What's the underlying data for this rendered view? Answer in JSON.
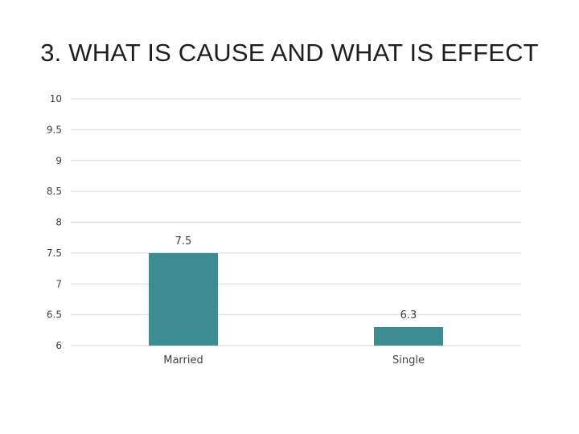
{
  "slide": {
    "title": "3. WHAT IS CAUSE AND WHAT IS EFFECT"
  },
  "colors": {
    "bar": "#3c8c91",
    "grid": "#d9d9d9",
    "text": "#404040"
  },
  "chart_data": {
    "type": "bar",
    "title": "3. WHAT IS CAUSE AND WHAT IS EFFECT",
    "categories": [
      "Married",
      "Single"
    ],
    "values": [
      7.5,
      6.3
    ],
    "data_labels": [
      "7.5",
      "6.3"
    ],
    "ylim": [
      6,
      10
    ],
    "yticks": [
      6,
      6.5,
      7,
      7.5,
      8,
      8.5,
      9,
      9.5,
      10
    ],
    "ytick_labels": [
      "6",
      "6.5",
      "7",
      "7.5",
      "8",
      "8.5",
      "9",
      "9.5",
      "10"
    ],
    "grid": true,
    "legend": "none"
  }
}
